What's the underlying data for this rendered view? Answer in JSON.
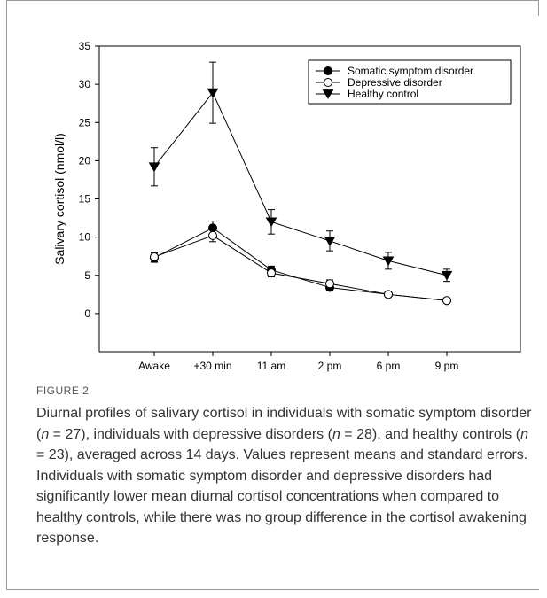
{
  "figure": {
    "label": "FIGURE 2",
    "caption_parts": [
      "Diurnal profiles of salivary cortisol in individuals with somatic symptom disorder (",
      "n",
      " = 27), individuals with depressive disorders (",
      "n",
      " = 28), and healthy controls (",
      "n",
      " = 23), averaged across 14 days. Values represent means and standard errors. Individuals with somatic symptom disorder and depressive disorders had significantly lower mean diurnal cortisol concentrations when compared to healthy controls, while there was no group difference in the cortisol awakening response."
    ]
  },
  "chart_data": {
    "type": "line",
    "title": "",
    "xlabel": "",
    "ylabel": "Salivary cortisol (nmol/l)",
    "categories": [
      "Awake",
      "+30 min",
      "11 am",
      "2 pm",
      "6 pm",
      "9 pm"
    ],
    "ylim": [
      -5,
      35
    ],
    "yticks": [
      0,
      5,
      10,
      15,
      20,
      25,
      30,
      35
    ],
    "grid": false,
    "legend_position": "top-right",
    "series": [
      {
        "name": "Somatic symptom disorder",
        "marker": "filled-circle",
        "values": [
          7.3,
          11.2,
          5.7,
          3.4,
          2.5,
          1.7
        ],
        "errors": [
          0.6,
          0.9,
          0.5,
          0.4,
          0.3,
          0.3
        ]
      },
      {
        "name": "Depressive disorder",
        "marker": "open-circle",
        "values": [
          7.4,
          10.2,
          5.3,
          3.9,
          2.5,
          1.7
        ],
        "errors": [
          0.6,
          0.8,
          0.5,
          0.5,
          0.3,
          0.3
        ]
      },
      {
        "name": "Healthy control",
        "marker": "filled-triangle-down",
        "values": [
          19.2,
          28.9,
          12.0,
          9.5,
          6.9,
          5.0
        ],
        "errors": [
          2.5,
          4.0,
          1.6,
          1.3,
          1.1,
          0.8
        ]
      }
    ]
  }
}
